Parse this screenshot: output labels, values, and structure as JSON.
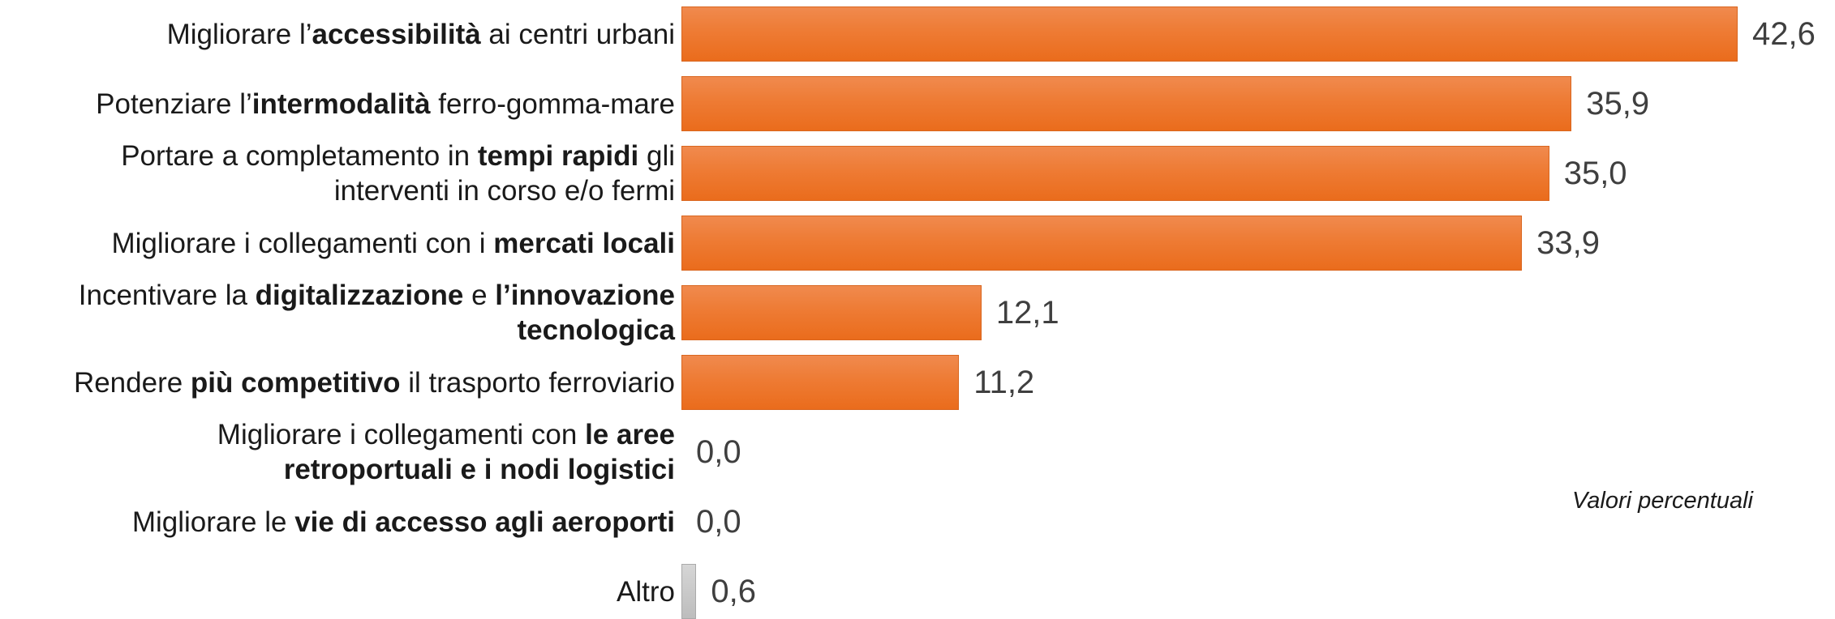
{
  "chart_data": {
    "type": "bar",
    "orientation": "horizontal",
    "note": "Valori percentuali",
    "categories": [
      {
        "parts": [
          {
            "t": "Migliorare l’",
            "b": false
          },
          {
            "t": "accessibilità",
            "b": true
          },
          {
            "t": " ai centri urbani",
            "b": false
          }
        ],
        "lines": 1
      },
      {
        "parts": [
          {
            "t": "Potenziare l’",
            "b": false
          },
          {
            "t": "intermodalità",
            "b": true
          },
          {
            "t": " ferro-gomma-mare",
            "b": false
          }
        ],
        "lines": 1
      },
      {
        "parts": [
          {
            "t": "Portare a completamento in ",
            "b": false
          },
          {
            "t": "tempi rapidi",
            "b": true
          },
          {
            "t": " gli",
            "b": false
          },
          {
            "t": "\n",
            "b": false
          },
          {
            "t": "interventi in corso e/o fermi",
            "b": false
          }
        ],
        "lines": 2
      },
      {
        "parts": [
          {
            "t": "Migliorare i collegamenti con i ",
            "b": false
          },
          {
            "t": "mercati locali",
            "b": true
          }
        ],
        "lines": 1
      },
      {
        "parts": [
          {
            "t": "Incentivare la ",
            "b": false
          },
          {
            "t": "digitalizzazione",
            "b": true
          },
          {
            "t": " e ",
            "b": false
          },
          {
            "t": "l’innovazione",
            "b": true
          },
          {
            "t": "\n",
            "b": false
          },
          {
            "t": "tecnologica",
            "b": true
          }
        ],
        "lines": 2
      },
      {
        "parts": [
          {
            "t": "Rendere ",
            "b": false
          },
          {
            "t": "più competitivo",
            "b": true
          },
          {
            "t": " il trasporto ferroviario",
            "b": false
          }
        ],
        "lines": 1
      },
      {
        "parts": [
          {
            "t": "Migliorare i collegamenti con ",
            "b": false
          },
          {
            "t": "le aree",
            "b": true
          },
          {
            "t": "\n",
            "b": false
          },
          {
            "t": "retroportuali e i nodi logistici",
            "b": true
          }
        ],
        "lines": 2
      },
      {
        "parts": [
          {
            "t": "Migliorare le ",
            "b": false
          },
          {
            "t": "vie di accesso agli aeroporti",
            "b": true
          }
        ],
        "lines": 1
      },
      {
        "parts": [
          {
            "t": "Altro",
            "b": false
          }
        ],
        "lines": 1
      }
    ],
    "values": [
      42.6,
      35.9,
      35.0,
      33.9,
      12.1,
      11.2,
      0.0,
      0.0,
      0.6
    ],
    "value_labels": [
      "42,6",
      "35,9",
      "35,0",
      "33,9",
      "12,1",
      "11,2",
      "0,0",
      "0,0",
      "0,6"
    ],
    "highlight_color": "#ED7D31",
    "other_color": "#C8C8C8",
    "xlim": [
      0,
      42.6
    ]
  }
}
